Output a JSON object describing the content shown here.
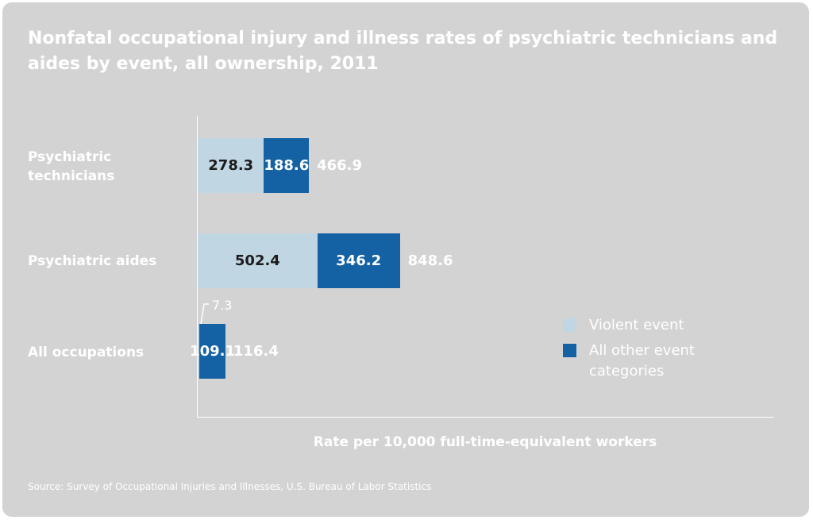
{
  "title": "Nonfatal occupational injury and illness rates of psychiatric technicians and aides by event, all ownership, 2011",
  "colors": {
    "background": "#d3d3d3",
    "violent": "#c1d6e3",
    "other": "#1462a3",
    "text": "#ffffff"
  },
  "chart_data": {
    "type": "bar",
    "orientation": "horizontal",
    "stacked": true,
    "categories": [
      "Psychiatric\ntechnicians",
      "Psychiatric aides",
      "All occupations"
    ],
    "series": [
      {
        "name": "Violent event",
        "values": [
          278.3,
          502.4,
          7.3
        ],
        "labels": [
          "278.3",
          "502.4",
          "7.3"
        ]
      },
      {
        "name": "All other event categories",
        "values": [
          188.6,
          346.2,
          109.1
        ],
        "labels": [
          "188.6",
          "346.2",
          "109.1"
        ]
      }
    ],
    "totals": [
      466.9,
      848.6,
      116.4
    ],
    "total_labels": [
      "466.9",
      "848.6",
      "116.4"
    ],
    "xlabel": "Rate per 10,000 full-time-equivalent workers",
    "xlim": [
      0,
      1000
    ],
    "grid": false,
    "legend_position": "bottom-right"
  },
  "source": "Source: Survey of Occupational Injuries and Illnesses, U.S. Bureau of Labor Statistics"
}
